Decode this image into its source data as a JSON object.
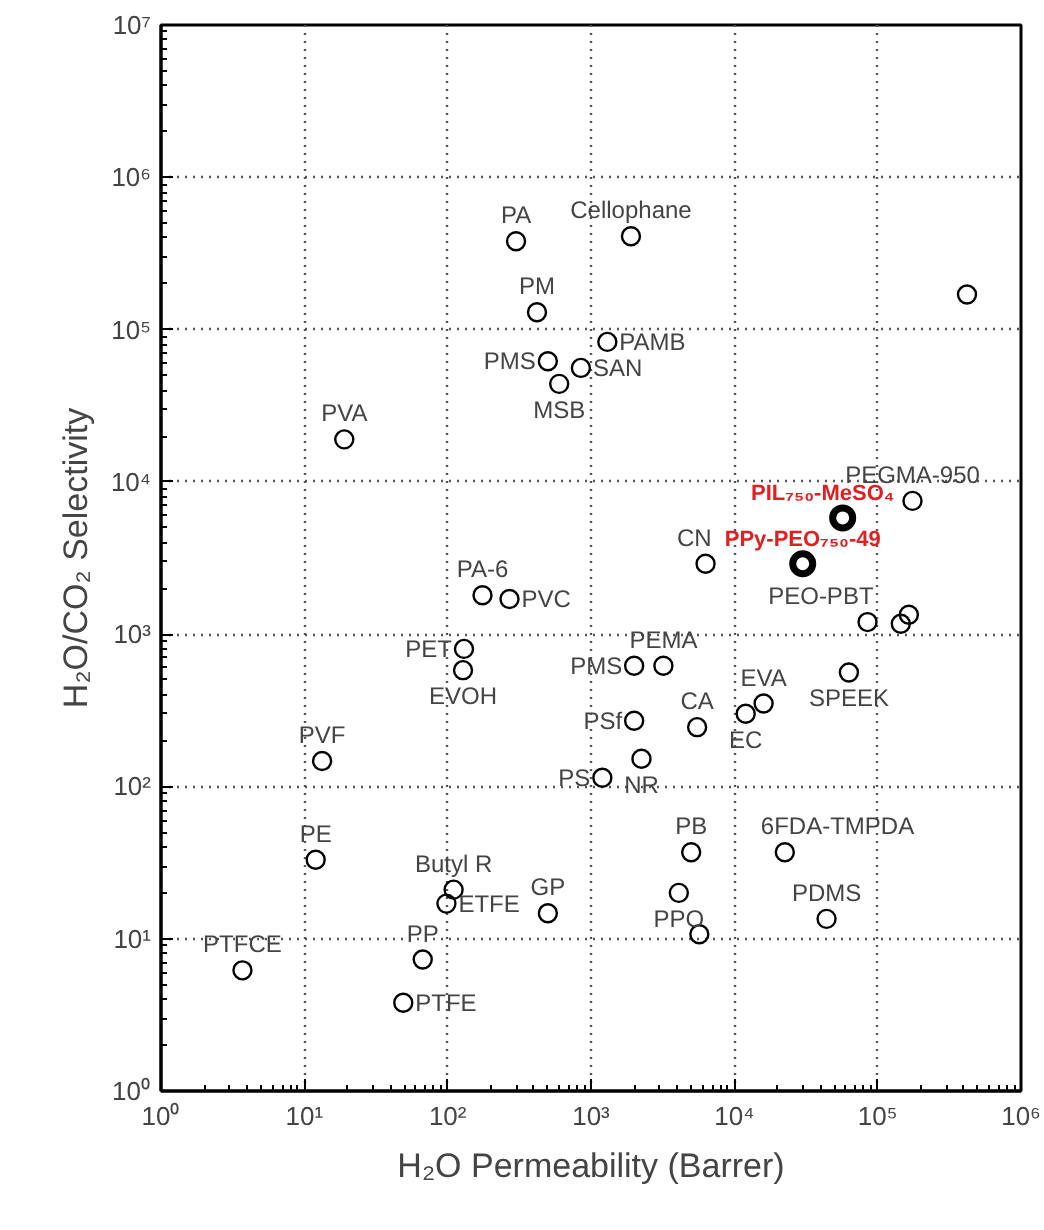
{
  "chart_data": {
    "type": "scatter",
    "xlabel": "H₂O Permeability (Barrer)",
    "ylabel": "H₂O/CO₂ Selectivity",
    "log": "xy",
    "grid": true,
    "marker": "circle",
    "xlim": [
      1,
      1000000
    ],
    "ylim": [
      1,
      10000000
    ],
    "xticks": [
      {
        "value": 1,
        "label": "10⁰"
      },
      {
        "value": 10,
        "label": "10¹"
      },
      {
        "value": 100,
        "label": "10²"
      },
      {
        "value": 1000,
        "label": "10³"
      },
      {
        "value": 10000,
        "label": "10⁴"
      },
      {
        "value": 100000,
        "label": "10⁵"
      },
      {
        "value": 1000000,
        "label": "10⁶"
      }
    ],
    "yticks": [
      {
        "value": 1,
        "label": "10⁰"
      },
      {
        "value": 10,
        "label": "10¹"
      },
      {
        "value": 100,
        "label": "10²"
      },
      {
        "value": 1000,
        "label": "10³"
      },
      {
        "value": 10000,
        "label": "10⁴"
      },
      {
        "value": 100000,
        "label": "10⁵"
      },
      {
        "value": 1000000,
        "label": "10⁶"
      },
      {
        "value": 10000000,
        "label": "10⁷"
      }
    ],
    "series": [
      {
        "color": "#000000",
        "x": [
          300,
          1900,
          420,
          500,
          600,
          850,
          1300,
          420000,
          19,
          175000,
          6300,
          175,
          270,
          85000,
          145000,
          165000,
          63000,
          130,
          128,
          2000,
          3200,
          2000,
          5500,
          16000,
          12000,
          13.3,
          1200,
          2250,
          12,
          5000,
          22500,
          110,
          98,
          4100,
          5700,
          500,
          44000,
          67,
          3.7,
          49
        ],
        "values": [
          380000,
          410000,
          130000,
          62000,
          44000,
          56000,
          83000,
          170000,
          19000,
          7500,
          2900,
          1800,
          1700,
          1200,
          1170,
          1340,
          560,
          800,
          580,
          620,
          620,
          270,
          245,
          350,
          300,
          147,
          114,
          152,
          33,
          37,
          37,
          21,
          17,
          20,
          10.7,
          14.7,
          13.5,
          7.3,
          6.2,
          3.8
        ]
      },
      {
        "name": "PIL₇₅₀-MeSO₄",
        "color": "#000000",
        "x": [
          57000
        ],
        "values": [
          5800
        ]
      },
      {
        "name": "PPy-PEO₇₅₀-49",
        "color": "#000000",
        "x": [
          30000
        ],
        "values": [
          2900
        ]
      }
    ],
    "annotations": [
      {
        "text": "PA",
        "x": 300,
        "y": 380000
      },
      {
        "text": "Cellophane",
        "x": 1900,
        "y": 410000
      },
      {
        "text": "PM",
        "x": 420,
        "y": 130000
      },
      {
        "text": "PMS",
        "x": 500,
        "y": 62000
      },
      {
        "text": "MSB",
        "x": 600,
        "y": 44000
      },
      {
        "text": "SAN",
        "x": 850,
        "y": 56000
      },
      {
        "text": "PAMB",
        "x": 1300,
        "y": 83000
      },
      {
        "text": "PVA",
        "x": 19,
        "y": 19000
      },
      {
        "text": "PEGMA-950",
        "x": 175000,
        "y": 7500
      },
      {
        "text": "CN",
        "x": 6300,
        "y": 2900
      },
      {
        "text": "PA-6",
        "x": 175,
        "y": 1800
      },
      {
        "text": "PVC",
        "x": 270,
        "y": 1700
      },
      {
        "text": "PEO-PBT",
        "x": 85000,
        "y": 1200
      },
      {
        "text": "SPEEK",
        "x": 63000,
        "y": 560
      },
      {
        "text": "PET",
        "x": 130,
        "y": 800
      },
      {
        "text": "EVOH",
        "x": 128,
        "y": 580
      },
      {
        "text": "PMS",
        "x": 2000,
        "y": 620
      },
      {
        "text": "PEMA",
        "x": 3200,
        "y": 620
      },
      {
        "text": "PSf",
        "x": 2000,
        "y": 270
      },
      {
        "text": "CA",
        "x": 5500,
        "y": 245
      },
      {
        "text": "EVA",
        "x": 16000,
        "y": 350
      },
      {
        "text": "EC",
        "x": 12000,
        "y": 300
      },
      {
        "text": "PVF",
        "x": 13.3,
        "y": 147
      },
      {
        "text": "PS",
        "x": 1200,
        "y": 114
      },
      {
        "text": "NR",
        "x": 2250,
        "y": 152
      },
      {
        "text": "PE",
        "x": 12,
        "y": 33
      },
      {
        "text": "PB",
        "x": 5000,
        "y": 37
      },
      {
        "text": "6FDA-TMPDA",
        "x": 22500,
        "y": 37
      },
      {
        "text": "Butyl R",
        "x": 110,
        "y": 21
      },
      {
        "text": "ETFE",
        "x": 98,
        "y": 17
      },
      {
        "text": "PPO",
        "x": 4100,
        "y": 20
      },
      {
        "text": "GP",
        "x": 500,
        "y": 14.7
      },
      {
        "text": "PDMS",
        "x": 44000,
        "y": 13.5
      },
      {
        "text": "PP",
        "x": 67,
        "y": 7.3
      },
      {
        "text": "PTFCE",
        "x": 3.7,
        "y": 6.2
      },
      {
        "text": "PTFE",
        "x": 49,
        "y": 3.8
      }
    ]
  }
}
